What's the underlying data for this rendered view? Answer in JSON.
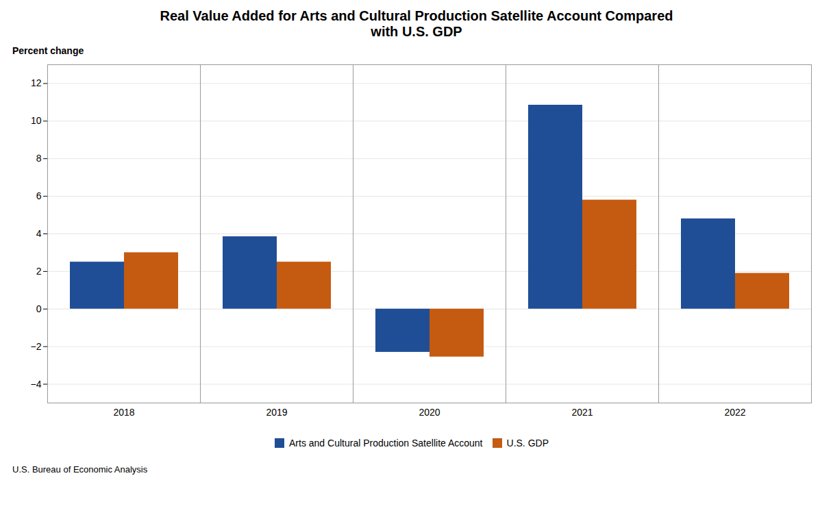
{
  "chart_data": {
    "type": "bar",
    "title": "Real Value Added for Arts and Cultural Production Satellite Account Compared\nwith U.S. GDP",
    "ylabel": "Percent change",
    "categories": [
      "2018",
      "2019",
      "2020",
      "2021",
      "2022"
    ],
    "series": [
      {
        "name": "Arts and Cultural Production Satellite Account",
        "color": "#1F4E96",
        "values": [
          2.5,
          3.85,
          -2.3,
          10.85,
          4.8
        ]
      },
      {
        "name": "U.S. GDP",
        "color": "#C55A11",
        "values": [
          3.0,
          2.5,
          -2.55,
          5.8,
          1.9
        ]
      }
    ],
    "ylim": [
      -5,
      13
    ],
    "yticks": [
      {
        "value": -4,
        "label": "−4"
      },
      {
        "value": -2,
        "label": "−2"
      },
      0,
      2,
      4,
      6,
      8,
      10,
      12
    ],
    "grid": true,
    "legend": "bottom",
    "source": "U.S. Bureau of Economic Analysis"
  }
}
